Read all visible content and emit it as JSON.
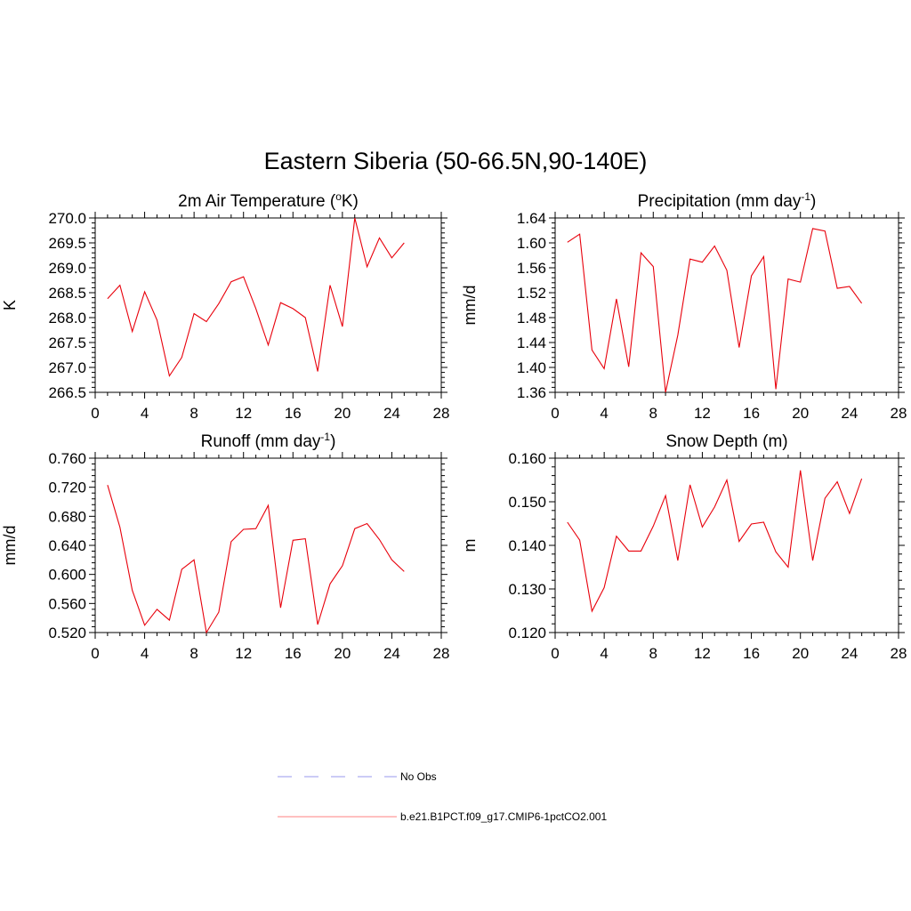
{
  "figure": {
    "title": "Eastern Siberia (50-66.5N,90-140E)"
  },
  "chart_data": [
    {
      "type": "line",
      "title": "2m Air Temperature (",
      "title_sup": "o",
      "title_post": "K)",
      "xlabel": "",
      "ylabel": "K",
      "xlim": [
        0,
        28
      ],
      "ylim": [
        266.5,
        270.0
      ],
      "xticks": [
        0,
        4,
        8,
        12,
        16,
        20,
        24,
        28
      ],
      "yticks": [
        266.5,
        267.0,
        267.5,
        268.0,
        268.5,
        269.0,
        269.5,
        270.0
      ],
      "ytick_labels": [
        "266.5",
        "267.0",
        "267.5",
        "268.0",
        "268.5",
        "269.0",
        "269.5",
        "270.0"
      ],
      "series": [
        {
          "name": "b.e21.B1PCT.f09_g17.CMIP6-1pctCO2.001",
          "color": "#e8000b",
          "x": [
            1,
            2,
            3,
            4,
            5,
            6,
            7,
            8,
            9,
            10,
            11,
            12,
            13,
            14,
            15,
            16,
            17,
            18,
            19,
            20,
            21,
            22,
            23,
            24,
            25
          ],
          "y": [
            268.38,
            268.65,
            267.72,
            268.52,
            267.95,
            266.83,
            267.2,
            268.08,
            267.92,
            268.28,
            268.72,
            268.82,
            268.18,
            267.45,
            268.3,
            268.18,
            268.0,
            266.92,
            268.65,
            267.82,
            270.0,
            269.02,
            269.6,
            269.2,
            269.5
          ]
        }
      ]
    },
    {
      "type": "line",
      "title": "Precipitation (mm day",
      "title_sup": "-1",
      "title_post": ")",
      "xlabel": "",
      "ylabel": "mm/d",
      "xlim": [
        0,
        28
      ],
      "ylim": [
        1.36,
        1.64
      ],
      "xticks": [
        0,
        4,
        8,
        12,
        16,
        20,
        24,
        28
      ],
      "yticks": [
        1.36,
        1.4,
        1.44,
        1.48,
        1.52,
        1.56,
        1.6,
        1.64
      ],
      "ytick_labels": [
        "1.36",
        "1.40",
        "1.44",
        "1.48",
        "1.52",
        "1.56",
        "1.60",
        "1.64"
      ],
      "series": [
        {
          "name": "b.e21.B1PCT.f09_g17.CMIP6-1pctCO2.001",
          "color": "#e8000b",
          "x": [
            1,
            2,
            3,
            4,
            5,
            6,
            7,
            8,
            9,
            10,
            11,
            12,
            13,
            14,
            15,
            16,
            17,
            18,
            19,
            20,
            21,
            22,
            23,
            24,
            25
          ],
          "y": [
            1.601,
            1.614,
            1.428,
            1.398,
            1.51,
            1.401,
            1.584,
            1.562,
            1.36,
            1.452,
            1.574,
            1.569,
            1.595,
            1.556,
            1.432,
            1.547,
            1.578,
            1.365,
            1.542,
            1.537,
            1.623,
            1.619,
            1.527,
            1.53,
            1.503
          ]
        }
      ]
    },
    {
      "type": "line",
      "title": "Runoff (mm day",
      "title_sup": "-1",
      "title_post": ")",
      "xlabel": "",
      "ylabel": "mm/d",
      "xlim": [
        0,
        28
      ],
      "ylim": [
        0.52,
        0.76
      ],
      "xticks": [
        0,
        4,
        8,
        12,
        16,
        20,
        24,
        28
      ],
      "yticks": [
        0.52,
        0.56,
        0.6,
        0.64,
        0.68,
        0.72,
        0.76
      ],
      "ytick_labels": [
        "0.520",
        "0.560",
        "0.600",
        "0.640",
        "0.680",
        "0.720",
        "0.760"
      ],
      "series": [
        {
          "name": "b.e21.B1PCT.f09_g17.CMIP6-1pctCO2.001",
          "color": "#e8000b",
          "x": [
            1,
            2,
            3,
            4,
            5,
            6,
            7,
            8,
            9,
            10,
            11,
            12,
            13,
            14,
            15,
            16,
            17,
            18,
            19,
            20,
            21,
            22,
            23,
            24,
            25
          ],
          "y": [
            0.723,
            0.665,
            0.578,
            0.53,
            0.552,
            0.537,
            0.607,
            0.62,
            0.52,
            0.548,
            0.645,
            0.662,
            0.663,
            0.695,
            0.554,
            0.647,
            0.649,
            0.531,
            0.587,
            0.612,
            0.663,
            0.67,
            0.648,
            0.62,
            0.604
          ]
        }
      ]
    },
    {
      "type": "line",
      "title": "Snow Depth (m)",
      "title_sup": "",
      "title_post": "",
      "xlabel": "",
      "ylabel": "m",
      "xlim": [
        0,
        28
      ],
      "ylim": [
        0.12,
        0.16
      ],
      "xticks": [
        0,
        4,
        8,
        12,
        16,
        20,
        24,
        28
      ],
      "yticks": [
        0.12,
        0.13,
        0.14,
        0.15,
        0.16
      ],
      "ytick_labels": [
        "0.120",
        "0.130",
        "0.140",
        "0.150",
        "0.160"
      ],
      "series": [
        {
          "name": "b.e21.B1PCT.f09_g17.CMIP6-1pctCO2.001",
          "color": "#e8000b",
          "x": [
            1,
            2,
            3,
            4,
            5,
            6,
            7,
            8,
            9,
            10,
            11,
            12,
            13,
            14,
            15,
            16,
            17,
            18,
            19,
            20,
            21,
            22,
            23,
            24,
            25
          ],
          "y": [
            0.1453,
            0.1412,
            0.1249,
            0.1303,
            0.1421,
            0.1387,
            0.1387,
            0.1444,
            0.1514,
            0.1365,
            0.1539,
            0.1442,
            0.1488,
            0.155,
            0.1409,
            0.1449,
            0.1453,
            0.1385,
            0.135,
            0.1572,
            0.1365,
            0.1508,
            0.1546,
            0.1473,
            0.1553
          ]
        }
      ]
    }
  ],
  "legend": [
    {
      "label": "No Obs",
      "color": "#9999ee",
      "dashed": true
    },
    {
      "label": "b.e21.B1PCT.f09_g17.CMIP6-1pctCO2.001",
      "color": "#ff8080",
      "dashed": false
    }
  ]
}
